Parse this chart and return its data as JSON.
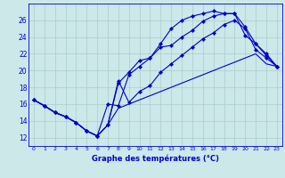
{
  "background_color": "#cce8e8",
  "grid_color": "#aacccc",
  "line_color": "#0000cc",
  "xlabel": "Graphe des températures (°C)",
  "ylim": [
    11,
    28
  ],
  "xlim": [
    -0.5,
    23.5
  ],
  "yticks": [
    12,
    14,
    16,
    18,
    20,
    22,
    24,
    26
  ],
  "xticks": [
    0,
    1,
    2,
    3,
    4,
    5,
    6,
    7,
    8,
    9,
    10,
    11,
    12,
    13,
    14,
    15,
    16,
    17,
    18,
    19,
    20,
    21,
    22,
    23
  ],
  "series": [
    [
      16.5,
      15.8,
      15.0,
      14.5,
      13.8,
      12.8,
      12.2,
      13.5,
      18.5,
      19.8,
      21.2,
      21.5,
      23.2,
      25.0,
      26.0,
      26.5,
      26.8,
      27.1,
      26.8,
      26.8,
      25.2,
      23.2,
      21.8,
      20.5
    ],
    [
      16.5,
      15.8,
      15.0,
      14.5,
      13.8,
      12.8,
      12.2,
      16.0,
      15.8,
      19.5,
      20.5,
      21.5,
      22.8,
      23.0,
      24.0,
      24.8,
      25.9,
      26.5,
      26.8,
      26.8,
      24.2,
      23.2,
      22.0,
      20.5
    ],
    [
      16.5,
      15.8,
      15.0,
      14.5,
      13.8,
      12.8,
      12.2,
      13.5,
      18.8,
      16.2,
      17.5,
      18.2,
      19.8,
      20.8,
      21.8,
      22.8,
      23.8,
      24.5,
      25.5,
      26.0,
      25.0,
      22.5,
      21.5,
      20.5
    ],
    [
      16.5,
      15.8,
      15.0,
      14.5,
      13.8,
      12.8,
      12.2,
      13.5,
      15.5,
      16.0,
      16.5,
      17.0,
      17.5,
      18.0,
      18.5,
      19.0,
      19.5,
      20.0,
      20.5,
      21.0,
      21.5,
      22.0,
      20.8,
      20.5
    ]
  ],
  "markers": [
    true,
    true,
    true,
    false
  ]
}
